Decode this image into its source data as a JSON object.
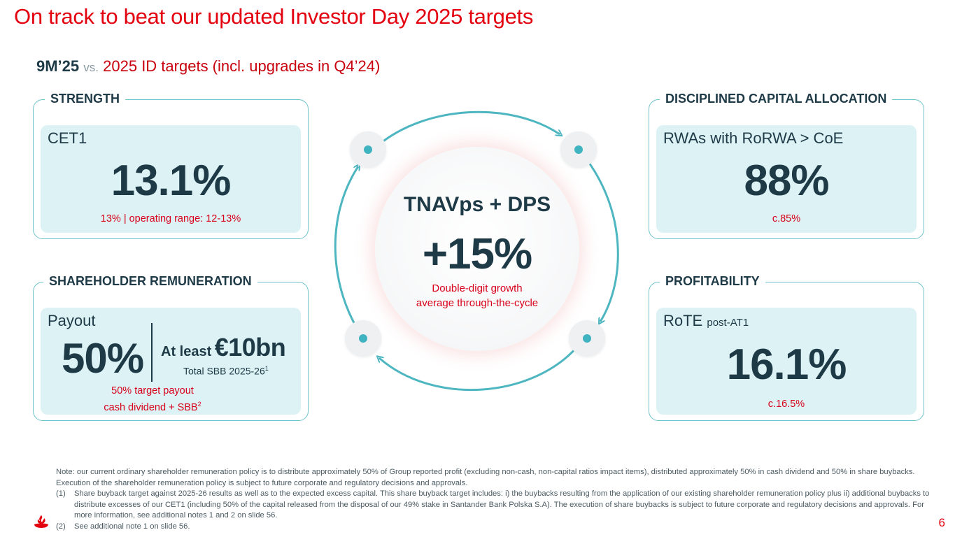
{
  "title": "On track to beat our updated Investor Day 2025 targets",
  "subtitle": {
    "period": "9M’25",
    "vs": "vs.",
    "targets": "2025 ID targets (incl. upgrades in Q4’24)"
  },
  "cards": {
    "strength": {
      "label": "STRENGTH",
      "metric": "CET1",
      "value": "13.1%",
      "target": "13% | operating range: 12-13%"
    },
    "capital": {
      "label": "DISCIPLINED CAPITAL ALLOCATION",
      "metric": "RWAs with RoRWA > CoE",
      "value": "88%",
      "target": "c.85%"
    },
    "remuneration": {
      "label": "SHAREHOLDER REMUNERATION",
      "metric": "Payout",
      "value": "50%",
      "at_least": "At least",
      "amount": "€10bn",
      "sbb_label": "Total SBB 2025-26",
      "sbb_sup": "1",
      "target_line1": "50% target payout",
      "target_line2": "cash dividend + SBB",
      "target_sup": "2"
    },
    "profitability": {
      "label": "PROFITABILITY",
      "metric": "RoTE",
      "metric_suffix": "post-AT1",
      "value": "16.1%",
      "target": "c.16.5%"
    }
  },
  "center": {
    "title": "TNAVps + DPS",
    "value": "+15%",
    "note_line1": "Double-digit growth",
    "note_line2": "average through-the-cycle"
  },
  "notes": {
    "main": "Note: our current ordinary shareholder remuneration policy is to distribute approximately 50% of Group reported profit (excluding non-cash, non-capital ratios impact items), distributed approximately 50% in cash dividend and 50% in share buybacks. Execution of the shareholder remuneration policy is subject to future corporate and regulatory decisions and approvals.",
    "fn1_num": "(1)",
    "fn1": "Share buyback target against 2025-26 results as well as to the expected excess capital. This share buyback target includes: i) the buybacks resulting from the application of our existing shareholder remuneration policy plus ii) additional buybacks to distribute excesses of our CET1 (including 50% of the capital released from the disposal of our 49% stake in Santander Bank Polska S.A). The execution of share buybacks is subject to future corporate and regulatory decisions and approvals. For more information, see additional notes 1 and 2 on slide 56.",
    "fn2_num": "(2)",
    "fn2": "See additional note 1 on slide 56."
  },
  "page_number": "6",
  "colors": {
    "red": "#e3000f",
    "navy": "#1e3a47",
    "teal": "#3fb3bf",
    "card_fill": "#dcf2f4"
  }
}
